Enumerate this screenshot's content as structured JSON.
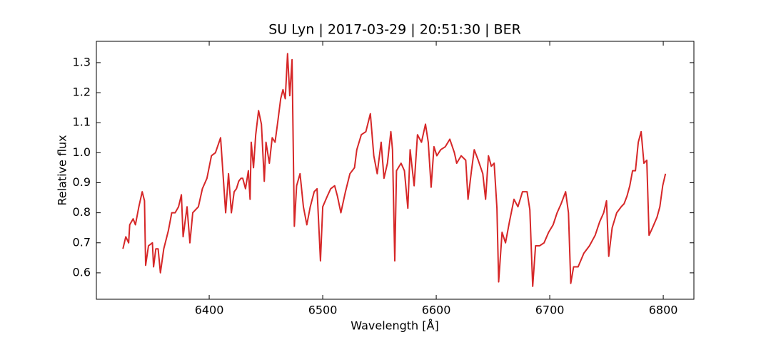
{
  "chart_data": {
    "type": "line",
    "title": "SU Lyn | 2017-03-29 | 20:51:30 | BER",
    "x_label": "Wavelength [Å]",
    "y_label": "Relative flux",
    "color": "#d62728",
    "x": [
      6324,
      6326.5,
      6329,
      6330,
      6333,
      6335,
      6338,
      6341,
      6343,
      6344,
      6346.5,
      6350,
      6351,
      6353,
      6355,
      6357,
      6360,
      6364,
      6367,
      6370,
      6373,
      6375.5,
      6377,
      6380.5,
      6383,
      6385.5,
      6390.5,
      6394,
      6398,
      6402,
      6405.5,
      6410,
      6412,
      6414.5,
      6417,
      6419.5,
      6422,
      6424,
      6426,
      6428,
      6429.5,
      6432,
      6434.5,
      6436,
      6437,
      6439,
      6441,
      6443.5,
      6446,
      6448.5,
      6450,
      6453,
      6455.5,
      6458,
      6460.5,
      6463,
      6465,
      6467,
      6469,
      6471,
      6473,
      6475,
      6477,
      6480,
      6483,
      6486,
      6489,
      6492.5,
      6495,
      6498,
      6500,
      6504,
      6507,
      6510.5,
      6513,
      6516,
      6520,
      6524,
      6528,
      6530,
      6534,
      6538,
      6542,
      6545,
      6548,
      6551.5,
      6554,
      6557,
      6560,
      6561.5,
      6563.5,
      6565,
      6569,
      6572,
      6575,
      6577,
      6580.5,
      6583.5,
      6587,
      6590.5,
      6593,
      6595.5,
      6598,
      6600.5,
      6604,
      6608,
      6612,
      6616,
      6618,
      6622,
      6626,
      6628,
      6631,
      6633.5,
      6637,
      6641,
      6643.5,
      6646,
      6648.5,
      6651,
      6653.5,
      6655,
      6658,
      6661,
      6664.5,
      6668.5,
      6672,
      6676,
      6680,
      6682.5,
      6685,
      6687.5,
      6691,
      6695,
      6699,
      6703,
      6706.5,
      6710,
      6714,
      6716.5,
      6718.5,
      6721,
      6725,
      6730,
      6735,
      6740,
      6744,
      6747.5,
      6750,
      6752,
      6755,
      6759,
      6763,
      6765.5,
      6768,
      6770.5,
      6773,
      6775.5,
      6778,
      6780.5,
      6783,
      6785.5,
      6787.5,
      6790.5,
      6794.5,
      6797,
      6799.5,
      6802
    ],
    "values": [
      0.68,
      0.72,
      0.7,
      0.76,
      0.78,
      0.76,
      0.82,
      0.87,
      0.84,
      0.625,
      0.69,
      0.7,
      0.62,
      0.68,
      0.68,
      0.6,
      0.68,
      0.74,
      0.8,
      0.8,
      0.82,
      0.86,
      0.72,
      0.82,
      0.7,
      0.8,
      0.82,
      0.88,
      0.915,
      0.99,
      1.0,
      1.05,
      0.94,
      0.8,
      0.93,
      0.8,
      0.87,
      0.88,
      0.905,
      0.915,
      0.915,
      0.88,
      0.94,
      0.845,
      1.035,
      0.95,
      1.06,
      1.14,
      1.095,
      0.905,
      1.035,
      0.965,
      1.05,
      1.035,
      1.105,
      1.18,
      1.21,
      1.18,
      1.33,
      1.19,
      1.31,
      0.755,
      0.89,
      0.93,
      0.82,
      0.76,
      0.82,
      0.87,
      0.88,
      0.64,
      0.82,
      0.855,
      0.88,
      0.89,
      0.855,
      0.8,
      0.87,
      0.93,
      0.95,
      1.01,
      1.06,
      1.07,
      1.13,
      0.99,
      0.93,
      1.035,
      0.915,
      0.965,
      1.07,
      1.01,
      0.64,
      0.94,
      0.965,
      0.94,
      0.815,
      1.01,
      0.89,
      1.06,
      1.035,
      1.095,
      1.035,
      0.885,
      1.02,
      0.99,
      1.01,
      1.02,
      1.045,
      1.0,
      0.965,
      0.99,
      0.975,
      0.845,
      0.94,
      1.01,
      0.975,
      0.93,
      0.845,
      0.99,
      0.955,
      0.965,
      0.815,
      0.57,
      0.735,
      0.7,
      0.77,
      0.845,
      0.82,
      0.87,
      0.87,
      0.81,
      0.555,
      0.69,
      0.69,
      0.7,
      0.735,
      0.76,
      0.8,
      0.83,
      0.87,
      0.8,
      0.565,
      0.62,
      0.62,
      0.665,
      0.69,
      0.725,
      0.77,
      0.8,
      0.84,
      0.655,
      0.75,
      0.8,
      0.82,
      0.83,
      0.855,
      0.89,
      0.94,
      0.94,
      1.035,
      1.07,
      0.965,
      0.975,
      0.725,
      0.75,
      0.785,
      0.82,
      0.89,
      0.93
    ],
    "xlim": [
      6300.6,
      6827
    ],
    "ylim": [
      0.512,
      1.371
    ],
    "xticks": [
      6400,
      6500,
      6600,
      6700,
      6800
    ],
    "yticks": [
      0.6,
      0.7,
      0.8,
      0.9,
      {
        "value": 1,
        "label": "1.0"
      },
      1.1,
      1.2,
      1.3
    ]
  }
}
